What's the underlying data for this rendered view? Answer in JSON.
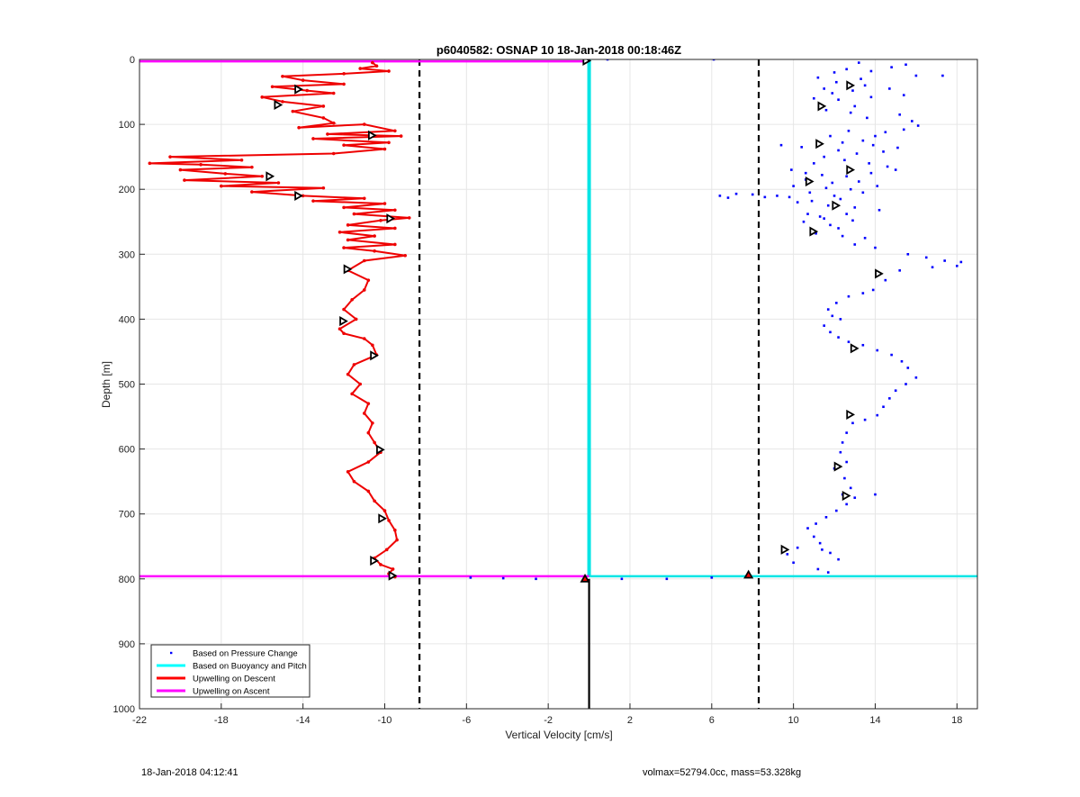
{
  "chart_data": {
    "type": "scatter",
    "title": "p6040582: OSNAP 10 18-Jan-2018 00:18:46Z",
    "xlabel": "Vertical Velocity [cm/s]",
    "ylabel": "Depth [m]",
    "xlim": [
      -22,
      19
    ],
    "ylim": [
      1000,
      0
    ],
    "y_reversed": true,
    "grid": true,
    "x_ticks": [
      "-22",
      "-18",
      "-14",
      "-10",
      "-6",
      "-2",
      "2",
      "6",
      "10",
      "14",
      "18"
    ],
    "x_tick_values": [
      -22,
      -18,
      -14,
      -10,
      -6,
      -2,
      2,
      6,
      10,
      14,
      18
    ],
    "y_ticks": [
      "0",
      "100",
      "200",
      "300",
      "400",
      "500",
      "600",
      "700",
      "800",
      "900",
      "1000"
    ],
    "y_tick_values": [
      0,
      100,
      200,
      300,
      400,
      500,
      600,
      700,
      800,
      900,
      1000
    ],
    "legend": {
      "placement": "bottom-left",
      "entries": [
        {
          "label": "Based on Pressure Change",
          "color": "#0000ff",
          "style": "dot"
        },
        {
          "label": "Based on Buoyancy and Pitch",
          "color": "#00ffff",
          "style": "line"
        },
        {
          "label": "Upwelling on Descent",
          "color": "#ff0000",
          "style": "line"
        },
        {
          "label": "Upwelling on Ascent",
          "color": "#ff00ff",
          "style": "line"
        }
      ]
    },
    "colors": {
      "pressure": "#0000ff",
      "buoyancy": "#00e5e5",
      "descent": "#ee0000",
      "ascent": "#ff00ff",
      "threshold": "#000000",
      "marker_fill_red": "#ff0000"
    },
    "thresholds_x": [
      -8.3,
      8.3
    ],
    "apogee": {
      "x": 0,
      "y0": 800,
      "y1": 1000
    },
    "pressure_points": [
      [
        13.2,
        5
      ],
      [
        12.6,
        15
      ],
      [
        13.8,
        18
      ],
      [
        15.5,
        8
      ],
      [
        16.0,
        25
      ],
      [
        17.3,
        25
      ],
      [
        14.8,
        12
      ],
      [
        11.2,
        28
      ],
      [
        12.1,
        35
      ],
      [
        13.5,
        40
      ],
      [
        12.9,
        48
      ],
      [
        11.9,
        52
      ],
      [
        11.0,
        60
      ],
      [
        12.2,
        62
      ],
      [
        13.8,
        58
      ],
      [
        14.7,
        45
      ],
      [
        15.4,
        55
      ],
      [
        13.0,
        72
      ],
      [
        11.6,
        78
      ],
      [
        12.8,
        82
      ],
      [
        13.6,
        90
      ],
      [
        15.2,
        85
      ],
      [
        15.8,
        95
      ],
      [
        16.1,
        102
      ],
      [
        15.4,
        108
      ],
      [
        14.5,
        112
      ],
      [
        14.0,
        118
      ],
      [
        13.4,
        125
      ],
      [
        12.7,
        110
      ],
      [
        11.8,
        118
      ],
      [
        12.4,
        128
      ],
      [
        13.9,
        132
      ],
      [
        15.1,
        136
      ],
      [
        14.4,
        142
      ],
      [
        13.1,
        145
      ],
      [
        12.2,
        140
      ],
      [
        11.5,
        150
      ],
      [
        11.0,
        160
      ],
      [
        12.5,
        155
      ],
      [
        13.7,
        160
      ],
      [
        14.6,
        165
      ],
      [
        15.0,
        170
      ],
      [
        13.8,
        175
      ],
      [
        12.6,
        180
      ],
      [
        11.4,
        178
      ],
      [
        10.6,
        185
      ],
      [
        11.9,
        190
      ],
      [
        13.2,
        188
      ],
      [
        14.1,
        195
      ],
      [
        12.8,
        200
      ],
      [
        11.6,
        198
      ],
      [
        10.8,
        205
      ],
      [
        12.0,
        210
      ],
      [
        13.4,
        205
      ],
      [
        12.3,
        215
      ],
      [
        10.9,
        218
      ],
      [
        11.7,
        225
      ],
      [
        13.0,
        228
      ],
      [
        14.2,
        232
      ],
      [
        12.6,
        238
      ],
      [
        11.3,
        242
      ],
      [
        10.5,
        250
      ],
      [
        11.8,
        255
      ],
      [
        12.9,
        248
      ],
      [
        12.2,
        260
      ],
      [
        11.1,
        268
      ],
      [
        12.4,
        272
      ],
      [
        13.5,
        275
      ],
      [
        10.7,
        238
      ],
      [
        11.5,
        245
      ],
      [
        9.8,
        212
      ],
      [
        9.2,
        210
      ],
      [
        8.6,
        212
      ],
      [
        8.0,
        208
      ],
      [
        7.2,
        207
      ],
      [
        6.8,
        213
      ],
      [
        6.4,
        210
      ],
      [
        10.2,
        220
      ],
      [
        10.0,
        195
      ],
      [
        10.6,
        175
      ],
      [
        9.9,
        170
      ],
      [
        10.4,
        135
      ],
      [
        9.4,
        132
      ],
      [
        13.0,
        285
      ],
      [
        14.0,
        290
      ],
      [
        15.6,
        300
      ],
      [
        16.5,
        305
      ],
      [
        17.4,
        310
      ],
      [
        18.2,
        312
      ],
      [
        18.0,
        318
      ],
      [
        16.8,
        320
      ],
      [
        15.2,
        325
      ],
      [
        14.5,
        340
      ],
      [
        13.9,
        355
      ],
      [
        13.4,
        360
      ],
      [
        12.7,
        365
      ],
      [
        12.1,
        375
      ],
      [
        11.7,
        385
      ],
      [
        11.9,
        395
      ],
      [
        12.3,
        400
      ],
      [
        11.5,
        410
      ],
      [
        11.8,
        420
      ],
      [
        12.2,
        428
      ],
      [
        12.7,
        435
      ],
      [
        13.4,
        440
      ],
      [
        14.1,
        448
      ],
      [
        14.8,
        455
      ],
      [
        15.3,
        465
      ],
      [
        15.6,
        475
      ],
      [
        16.0,
        490
      ],
      [
        15.5,
        500
      ],
      [
        15.0,
        510
      ],
      [
        14.7,
        522
      ],
      [
        14.4,
        535
      ],
      [
        14.1,
        548
      ],
      [
        13.5,
        555
      ],
      [
        12.9,
        560
      ],
      [
        12.6,
        575
      ],
      [
        12.4,
        590
      ],
      [
        12.3,
        605
      ],
      [
        12.6,
        620
      ],
      [
        12.0,
        630
      ],
      [
        12.5,
        645
      ],
      [
        12.8,
        660
      ],
      [
        12.4,
        670
      ],
      [
        13.0,
        675
      ],
      [
        14.0,
        670
      ],
      [
        12.6,
        685
      ],
      [
        12.1,
        695
      ],
      [
        11.6,
        705
      ],
      [
        11.1,
        715
      ],
      [
        10.7,
        722
      ],
      [
        11.0,
        735
      ],
      [
        11.3,
        745
      ],
      [
        10.2,
        752
      ],
      [
        9.7,
        762
      ],
      [
        10.0,
        775
      ],
      [
        11.2,
        785
      ],
      [
        11.7,
        790
      ],
      [
        12.2,
        770
      ],
      [
        11.8,
        760
      ],
      [
        11.4,
        755
      ],
      [
        13.3,
        30
      ],
      [
        12.0,
        20
      ],
      [
        11.5,
        45
      ],
      [
        0.9,
        0
      ],
      [
        6.1,
        0
      ],
      [
        -5.8,
        798
      ],
      [
        -2.6,
        800
      ],
      [
        -4.2,
        799
      ],
      [
        1.6,
        800
      ],
      [
        3.8,
        800
      ],
      [
        6.0,
        798
      ]
    ],
    "descent_points": [
      [
        -10.6,
        5
      ],
      [
        -10.4,
        10
      ],
      [
        -11.2,
        14
      ],
      [
        -9.8,
        18
      ],
      [
        -12.0,
        22
      ],
      [
        -15.0,
        26
      ],
      [
        -14.0,
        32
      ],
      [
        -12.0,
        38
      ],
      [
        -15.5,
        42
      ],
      [
        -13.8,
        48
      ],
      [
        -12.5,
        52
      ],
      [
        -16.0,
        58
      ],
      [
        -15.0,
        65
      ],
      [
        -13.0,
        72
      ],
      [
        -14.5,
        80
      ],
      [
        -13.0,
        90
      ],
      [
        -12.5,
        98
      ],
      [
        -14.2,
        105
      ],
      [
        -11.0,
        100
      ],
      [
        -9.5,
        110
      ],
      [
        -12.8,
        115
      ],
      [
        -9.2,
        118
      ],
      [
        -13.5,
        122
      ],
      [
        -9.8,
        128
      ],
      [
        -12.0,
        132
      ],
      [
        -10.0,
        138
      ],
      [
        -12.5,
        145
      ],
      [
        -20.5,
        150
      ],
      [
        -17.0,
        155
      ],
      [
        -21.5,
        160
      ],
      [
        -19.0,
        162
      ],
      [
        -16.5,
        166
      ],
      [
        -20.0,
        170
      ],
      [
        -17.8,
        176
      ],
      [
        -16.0,
        180
      ],
      [
        -19.8,
        186
      ],
      [
        -15.2,
        190
      ],
      [
        -18.0,
        195
      ],
      [
        -13.0,
        198
      ],
      [
        -16.5,
        204
      ],
      [
        -14.0,
        210
      ],
      [
        -11.0,
        214
      ],
      [
        -13.5,
        218
      ],
      [
        -10.0,
        222
      ],
      [
        -12.0,
        228
      ],
      [
        -9.5,
        232
      ],
      [
        -11.5,
        238
      ],
      [
        -8.8,
        244
      ],
      [
        -10.2,
        248
      ],
      [
        -11.8,
        255
      ],
      [
        -9.5,
        260
      ],
      [
        -12.2,
        266
      ],
      [
        -10.5,
        272
      ],
      [
        -11.8,
        278
      ],
      [
        -9.5,
        285
      ],
      [
        -12.0,
        290
      ],
      [
        -10.5,
        295
      ],
      [
        -9.0,
        302
      ],
      [
        -11.0,
        310
      ],
      [
        -11.8,
        325
      ],
      [
        -10.8,
        340
      ],
      [
        -11.0,
        355
      ],
      [
        -11.6,
        370
      ],
      [
        -12.0,
        385
      ],
      [
        -11.4,
        400
      ],
      [
        -12.2,
        415
      ],
      [
        -12.0,
        422
      ],
      [
        -11.0,
        430
      ],
      [
        -10.6,
        440
      ],
      [
        -10.4,
        455
      ],
      [
        -11.5,
        470
      ],
      [
        -11.8,
        485
      ],
      [
        -11.2,
        500
      ],
      [
        -11.6,
        515
      ],
      [
        -10.8,
        530
      ],
      [
        -11.0,
        545
      ],
      [
        -10.6,
        560
      ],
      [
        -10.8,
        575
      ],
      [
        -10.5,
        590
      ],
      [
        -10.2,
        605
      ],
      [
        -10.8,
        620
      ],
      [
        -11.8,
        635
      ],
      [
        -11.5,
        650
      ],
      [
        -10.8,
        665
      ],
      [
        -10.5,
        680
      ],
      [
        -10.0,
        695
      ],
      [
        -9.8,
        710
      ],
      [
        -9.5,
        725
      ],
      [
        -9.4,
        740
      ],
      [
        -9.9,
        755
      ],
      [
        -10.5,
        768
      ],
      [
        -10.2,
        778
      ],
      [
        -9.6,
        785
      ],
      [
        -9.8,
        792
      ],
      [
        -9.5,
        797
      ]
    ],
    "ascent_lines_y": [
      3,
      796
    ],
    "buoyancy_line": {
      "x": 0,
      "y0": 0,
      "y1": 796,
      "surface_y": 796,
      "x_end": 19
    },
    "triangle_markers": [
      [
        -0.1,
        2
      ],
      [
        -14.2,
        46
      ],
      [
        -15.2,
        70
      ],
      [
        -10.6,
        117
      ],
      [
        -15.6,
        180
      ],
      [
        -14.2,
        210
      ],
      [
        -9.7,
        245
      ],
      [
        -11.8,
        323
      ],
      [
        -12.0,
        403
      ],
      [
        -10.5,
        456
      ],
      [
        -10.2,
        601
      ],
      [
        -10.1,
        707
      ],
      [
        -10.5,
        772
      ],
      [
        -9.6,
        795
      ],
      [
        12.8,
        40
      ],
      [
        11.4,
        72
      ],
      [
        11.3,
        130
      ],
      [
        12.8,
        170
      ],
      [
        10.8,
        188
      ],
      [
        12.1,
        225
      ],
      [
        11.0,
        265
      ],
      [
        14.2,
        330
      ],
      [
        13.0,
        445
      ],
      [
        12.8,
        547
      ],
      [
        12.2,
        627
      ],
      [
        12.6,
        672
      ],
      [
        9.6,
        755
      ],
      [
        -0.2,
        800
      ],
      [
        7.8,
        794
      ]
    ]
  },
  "footer": {
    "timestamp": "18-Jan-2018 04:12:41",
    "params": "volmax=52794.0cc, mass=53.328kg"
  }
}
